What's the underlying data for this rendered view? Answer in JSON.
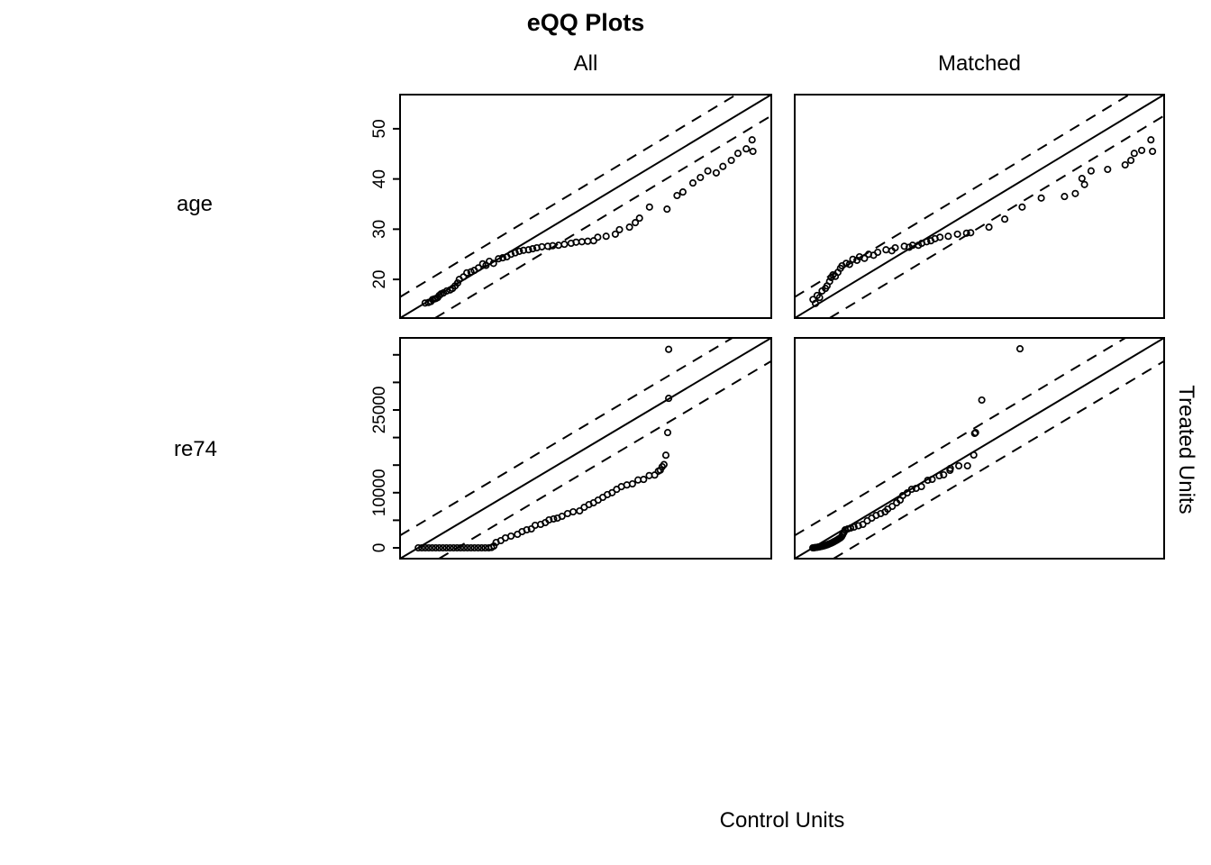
{
  "title": "eQQ Plots",
  "column_headers": {
    "all": "All",
    "matched": "Matched"
  },
  "row_labels": {
    "row1": "age",
    "row2": "re74"
  },
  "x_axis_label": "Control Units",
  "y_axis_label": "Treated Units",
  "colors": {
    "foreground": "#000000",
    "background": "#ffffff"
  },
  "chart_data": [
    {
      "id": "age-all",
      "type": "scatter",
      "variable": "age",
      "sample": "All",
      "xlabel": "Control Units",
      "ylabel": "Treated Units",
      "axis_range": [
        12.3,
        56.8
      ],
      "yticks": {
        "values": [
          20,
          30,
          40,
          50
        ],
        "labels": [
          "20",
          "30",
          "40",
          "50"
        ],
        "show": true
      },
      "identity_line": true,
      "band_offset": 4.2,
      "grid": false,
      "points": [
        [
          15.3,
          15.3
        ],
        [
          15.7,
          15.4
        ],
        [
          16.0,
          15.6
        ],
        [
          16.2,
          16.0
        ],
        [
          16.4,
          16.1
        ],
        [
          16.6,
          16.2
        ],
        [
          16.8,
          16.4
        ],
        [
          17.0,
          16.8
        ],
        [
          17.2,
          17.1
        ],
        [
          17.5,
          17.3
        ],
        [
          17.9,
          17.7
        ],
        [
          18.3,
          17.9
        ],
        [
          18.6,
          18.2
        ],
        [
          18.9,
          18.7
        ],
        [
          19.2,
          19.3
        ],
        [
          19.4,
          20.0
        ],
        [
          19.9,
          20.5
        ],
        [
          20.3,
          21.3
        ],
        [
          20.8,
          21.5
        ],
        [
          21.2,
          21.8
        ],
        [
          21.7,
          22.3
        ],
        [
          22.2,
          23.1
        ],
        [
          22.6,
          22.8
        ],
        [
          23.0,
          23.6
        ],
        [
          23.5,
          23.2
        ],
        [
          24.1,
          24.1
        ],
        [
          24.6,
          24.3
        ],
        [
          25.1,
          24.5
        ],
        [
          25.6,
          25.0
        ],
        [
          26.1,
          25.3
        ],
        [
          26.6,
          25.6
        ],
        [
          27.1,
          25.8
        ],
        [
          27.7,
          25.9
        ],
        [
          28.2,
          26.1
        ],
        [
          28.7,
          26.3
        ],
        [
          29.3,
          26.5
        ],
        [
          30.0,
          26.6
        ],
        [
          30.6,
          26.7
        ],
        [
          31.3,
          26.8
        ],
        [
          32.0,
          27.0
        ],
        [
          32.8,
          27.2
        ],
        [
          33.4,
          27.4
        ],
        [
          34.1,
          27.5
        ],
        [
          34.8,
          27.6
        ],
        [
          35.5,
          27.7
        ],
        [
          36.0,
          28.4
        ],
        [
          37.0,
          28.6
        ],
        [
          38.1,
          29.0
        ],
        [
          38.6,
          29.9
        ],
        [
          39.8,
          30.4
        ],
        [
          40.5,
          31.3
        ],
        [
          41.0,
          32.2
        ],
        [
          42.2,
          34.4
        ],
        [
          44.3,
          34.0
        ],
        [
          45.5,
          36.7
        ],
        [
          46.2,
          37.4
        ],
        [
          47.4,
          39.2
        ],
        [
          48.3,
          40.3
        ],
        [
          49.2,
          41.6
        ],
        [
          50.2,
          41.2
        ],
        [
          51.0,
          42.5
        ],
        [
          52.0,
          43.7
        ],
        [
          52.8,
          45.1
        ],
        [
          53.8,
          46.0
        ],
        [
          54.5,
          47.8
        ],
        [
          54.6,
          45.5
        ]
      ]
    },
    {
      "id": "age-matched",
      "type": "scatter",
      "variable": "age",
      "sample": "Matched",
      "xlabel": "Control Units",
      "ylabel": "Treated Units",
      "axis_range": [
        12.3,
        56.8
      ],
      "yticks": {
        "values": [
          20,
          30,
          40,
          50
        ],
        "labels": [
          "20",
          "30",
          "40",
          "50"
        ],
        "show": false
      },
      "identity_line": true,
      "band_offset": 4.2,
      "grid": false,
      "points": [
        [
          14.5,
          16.0
        ],
        [
          14.8,
          15.2
        ],
        [
          15.0,
          16.8
        ],
        [
          15.3,
          16.4
        ],
        [
          15.6,
          17.7
        ],
        [
          16.0,
          18.2
        ],
        [
          16.2,
          18.7
        ],
        [
          16.5,
          19.6
        ],
        [
          16.7,
          20.4
        ],
        [
          16.9,
          20.9
        ],
        [
          17.2,
          20.6
        ],
        [
          17.5,
          21.4
        ],
        [
          17.8,
          22.2
        ],
        [
          18.0,
          22.7
        ],
        [
          18.5,
          23.2
        ],
        [
          18.9,
          23.0
        ],
        [
          19.3,
          24.0
        ],
        [
          19.8,
          23.8
        ],
        [
          20.1,
          24.5
        ],
        [
          20.7,
          24.2
        ],
        [
          21.2,
          25.0
        ],
        [
          21.8,
          24.8
        ],
        [
          22.3,
          25.4
        ],
        [
          23.3,
          25.9
        ],
        [
          24.0,
          25.7
        ],
        [
          24.4,
          26.3
        ],
        [
          25.5,
          26.6
        ],
        [
          26.1,
          26.4
        ],
        [
          26.5,
          26.8
        ],
        [
          27.2,
          26.8
        ],
        [
          27.6,
          27.2
        ],
        [
          28.2,
          27.5
        ],
        [
          28.7,
          27.7
        ],
        [
          29.2,
          28.1
        ],
        [
          29.8,
          28.4
        ],
        [
          30.8,
          28.6
        ],
        [
          31.9,
          29.0
        ],
        [
          33.0,
          29.2
        ],
        [
          33.5,
          29.3
        ],
        [
          35.7,
          30.4
        ],
        [
          37.6,
          32.0
        ],
        [
          39.7,
          34.4
        ],
        [
          42.0,
          36.2
        ],
        [
          44.8,
          36.5
        ],
        [
          46.1,
          37.1
        ],
        [
          46.9,
          40.1
        ],
        [
          47.2,
          38.9
        ],
        [
          48.0,
          41.6
        ],
        [
          50.0,
          41.9
        ],
        [
          52.1,
          42.8
        ],
        [
          52.8,
          43.7
        ],
        [
          53.2,
          45.1
        ],
        [
          54.1,
          45.7
        ],
        [
          55.2,
          47.8
        ],
        [
          55.4,
          45.5
        ]
      ]
    },
    {
      "id": "re74-all",
      "type": "scatter",
      "variable": "re74",
      "sample": "All",
      "xlabel": "Control Units",
      "ylabel": "Treated Units",
      "axis_range": [
        -1960,
        38070
      ],
      "yticks": {
        "values": [
          0,
          5000,
          10000,
          15000,
          20000,
          25000,
          30000,
          35000
        ],
        "labels": [
          "0",
          "",
          "10000",
          "",
          "",
          "25000",
          "",
          ""
        ],
        "show": true
      },
      "identity_line": true,
      "band_offset": 4200,
      "grid": false,
      "points": [
        [
          0,
          0
        ],
        [
          380,
          0
        ],
        [
          760,
          0
        ],
        [
          1140,
          0
        ],
        [
          1520,
          0
        ],
        [
          1900,
          0
        ],
        [
          2280,
          0
        ],
        [
          2660,
          0
        ],
        [
          3040,
          0
        ],
        [
          3420,
          0
        ],
        [
          3800,
          0
        ],
        [
          4180,
          0
        ],
        [
          4560,
          0
        ],
        [
          4940,
          0
        ],
        [
          5320,
          0
        ],
        [
          5700,
          0
        ],
        [
          6080,
          0
        ],
        [
          6460,
          0
        ],
        [
          6840,
          0
        ],
        [
          7220,
          0
        ],
        [
          7600,
          0
        ],
        [
          7900,
          60
        ],
        [
          8150,
          330
        ],
        [
          8400,
          980
        ],
        [
          8900,
          1310
        ],
        [
          9400,
          1800
        ],
        [
          10000,
          2120
        ],
        [
          10700,
          2450
        ],
        [
          11200,
          2940
        ],
        [
          11700,
          3270
        ],
        [
          12200,
          3430
        ],
        [
          12600,
          4080
        ],
        [
          13200,
          4250
        ],
        [
          13700,
          4580
        ],
        [
          14100,
          5070
        ],
        [
          14600,
          5240
        ],
        [
          15000,
          5390
        ],
        [
          15500,
          5720
        ],
        [
          16100,
          6210
        ],
        [
          16700,
          6540
        ],
        [
          17400,
          6700
        ],
        [
          17900,
          7350
        ],
        [
          18400,
          7840
        ],
        [
          18900,
          8170
        ],
        [
          19400,
          8660
        ],
        [
          19900,
          9150
        ],
        [
          20400,
          9650
        ],
        [
          20900,
          10000
        ],
        [
          21400,
          10600
        ],
        [
          21900,
          11100
        ],
        [
          22500,
          11400
        ],
        [
          23100,
          11600
        ],
        [
          23700,
          12300
        ],
        [
          24300,
          12400
        ],
        [
          24900,
          13100
        ],
        [
          25500,
          13200
        ],
        [
          25900,
          13900
        ],
        [
          26100,
          14100
        ],
        [
          26300,
          14700
        ],
        [
          26500,
          15100
        ],
        [
          26700,
          16800
        ],
        [
          26900,
          20900
        ],
        [
          27000,
          27100
        ],
        [
          27000,
          36000
        ]
      ]
    },
    {
      "id": "re74-matched",
      "type": "scatter",
      "variable": "re74",
      "sample": "Matched",
      "xlabel": "Control Units",
      "ylabel": "Treated Units",
      "axis_range": [
        -1960,
        38070
      ],
      "yticks": {
        "values": [
          0,
          5000,
          10000,
          15000,
          20000,
          25000,
          30000,
          35000
        ],
        "labels": [
          "0",
          "",
          "10000",
          "",
          "",
          "25000",
          "",
          ""
        ],
        "show": false
      },
      "identity_line": true,
      "band_offset": 4200,
      "grid": false,
      "points": [
        [
          0,
          0
        ],
        [
          120,
          20
        ],
        [
          250,
          50
        ],
        [
          380,
          80
        ],
        [
          510,
          110
        ],
        [
          640,
          150
        ],
        [
          770,
          190
        ],
        [
          900,
          240
        ],
        [
          1030,
          290
        ],
        [
          1160,
          350
        ],
        [
          1290,
          410
        ],
        [
          1420,
          480
        ],
        [
          1550,
          560
        ],
        [
          1680,
          640
        ],
        [
          1810,
          730
        ],
        [
          1940,
          820
        ],
        [
          2070,
          920
        ],
        [
          2200,
          1030
        ],
        [
          2330,
          1140
        ],
        [
          2460,
          1260
        ],
        [
          2590,
          1390
        ],
        [
          2720,
          1520
        ],
        [
          2850,
          1660
        ],
        [
          2980,
          1800
        ],
        [
          3110,
          2000
        ],
        [
          3210,
          2300
        ],
        [
          3300,
          2600
        ],
        [
          3400,
          2900
        ],
        [
          3500,
          3260
        ],
        [
          3790,
          3430
        ],
        [
          4100,
          3600
        ],
        [
          4460,
          3760
        ],
        [
          4940,
          4000
        ],
        [
          5420,
          4250
        ],
        [
          5900,
          4900
        ],
        [
          6390,
          5390
        ],
        [
          6870,
          5880
        ],
        [
          7350,
          6210
        ],
        [
          7830,
          6540
        ],
        [
          8120,
          7030
        ],
        [
          8600,
          7520
        ],
        [
          9080,
          8170
        ],
        [
          9460,
          8660
        ],
        [
          9750,
          9480
        ],
        [
          10230,
          9970
        ],
        [
          10710,
          10620
        ],
        [
          11190,
          10790
        ],
        [
          11770,
          11110
        ],
        [
          12450,
          12250
        ],
        [
          12930,
          12420
        ],
        [
          13700,
          13070
        ],
        [
          14180,
          13230
        ],
        [
          14860,
          14050
        ],
        [
          14900,
          14400
        ],
        [
          15820,
          14870
        ],
        [
          16760,
          14870
        ],
        [
          17440,
          16830
        ],
        [
          17540,
          20750
        ],
        [
          17640,
          20900
        ],
        [
          18310,
          26800
        ],
        [
          22450,
          36100
        ]
      ]
    }
  ]
}
